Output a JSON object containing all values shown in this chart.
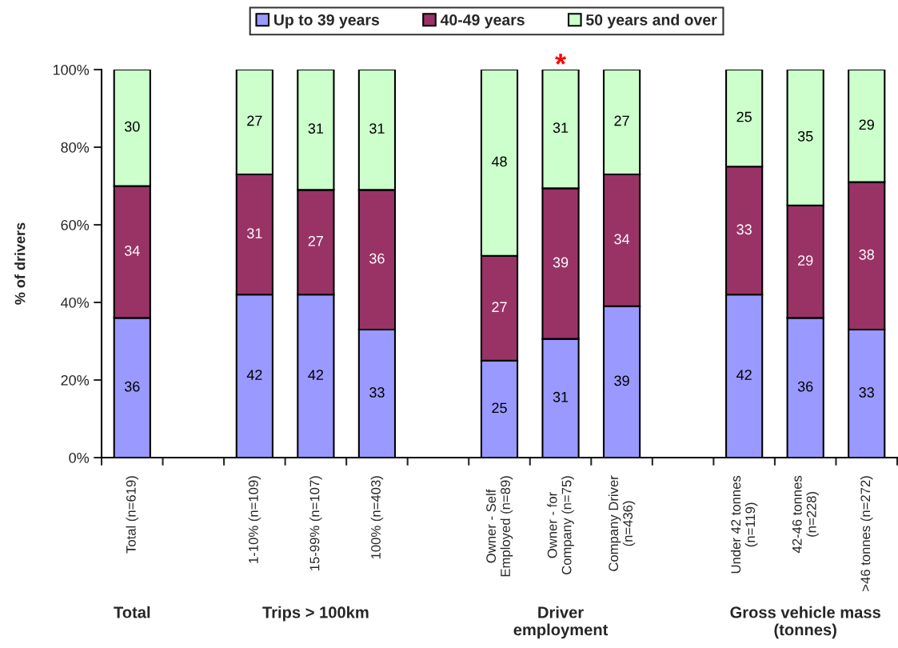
{
  "chart_data": {
    "type": "bar",
    "stacked": true,
    "ylabel": "% of drivers",
    "legend": "top",
    "categories": [
      "Total (n=619)",
      null,
      "1-10% (n=109)",
      "15-99% (n=107)",
      "100% (n=403)",
      null,
      "Owner - Self\nEmployed (n=89)",
      "Owner - for\nCompany (n=75)",
      "Company Driver\n(n=436)",
      null,
      "Under 42 tonnes\n(n=119)",
      "42-46 tonnes\n(n=228)",
      ">46 tonnes (n=272)"
    ],
    "series": [
      {
        "name": "Up to 39 years",
        "color": "#9999ff",
        "values": [
          36,
          null,
          42,
          42,
          33,
          null,
          25,
          30.6,
          39,
          null,
          42,
          36,
          33
        ],
        "value_labels": [
          "36",
          null,
          "42",
          "42",
          "33",
          null,
          "25",
          "31",
          "39",
          null,
          "42",
          "36",
          "33"
        ]
      },
      {
        "name": "40-49 years",
        "color": "#993366",
        "values": [
          34,
          null,
          31,
          27,
          36,
          null,
          27,
          38.8,
          34,
          null,
          33,
          29,
          38
        ],
        "value_labels": [
          "34",
          null,
          "31",
          "27",
          "36",
          null,
          "27",
          "39",
          "34",
          null,
          "33",
          "29",
          "38"
        ]
      },
      {
        "name": "50 years and over",
        "color": "#ccffcc",
        "values": [
          30,
          null,
          27,
          31,
          31,
          null,
          48,
          30.6,
          27,
          null,
          25,
          35,
          29
        ],
        "value_labels": [
          "30",
          null,
          "27",
          "31",
          "31",
          null,
          "48",
          "31",
          "27",
          null,
          "25",
          "35",
          "29"
        ]
      }
    ],
    "ylim": [
      0,
      100
    ],
    "yticks": [
      {
        "value": 0,
        "label": "0%"
      },
      {
        "value": 20,
        "label": "20%"
      },
      {
        "value": 40,
        "label": "40%"
      },
      {
        "value": 60,
        "label": "60%"
      },
      {
        "value": 80,
        "label": "80%"
      },
      {
        "value": 100,
        "label": "100%"
      }
    ],
    "annotations": [
      "Total",
      "Trips > 100km",
      "Driver\nemployment",
      "Gross vehicle mass\n(tonnes)",
      {
        "text": "*",
        "x": "Owner - for\nCompany (n=75)",
        "y": 100
      }
    ]
  }
}
